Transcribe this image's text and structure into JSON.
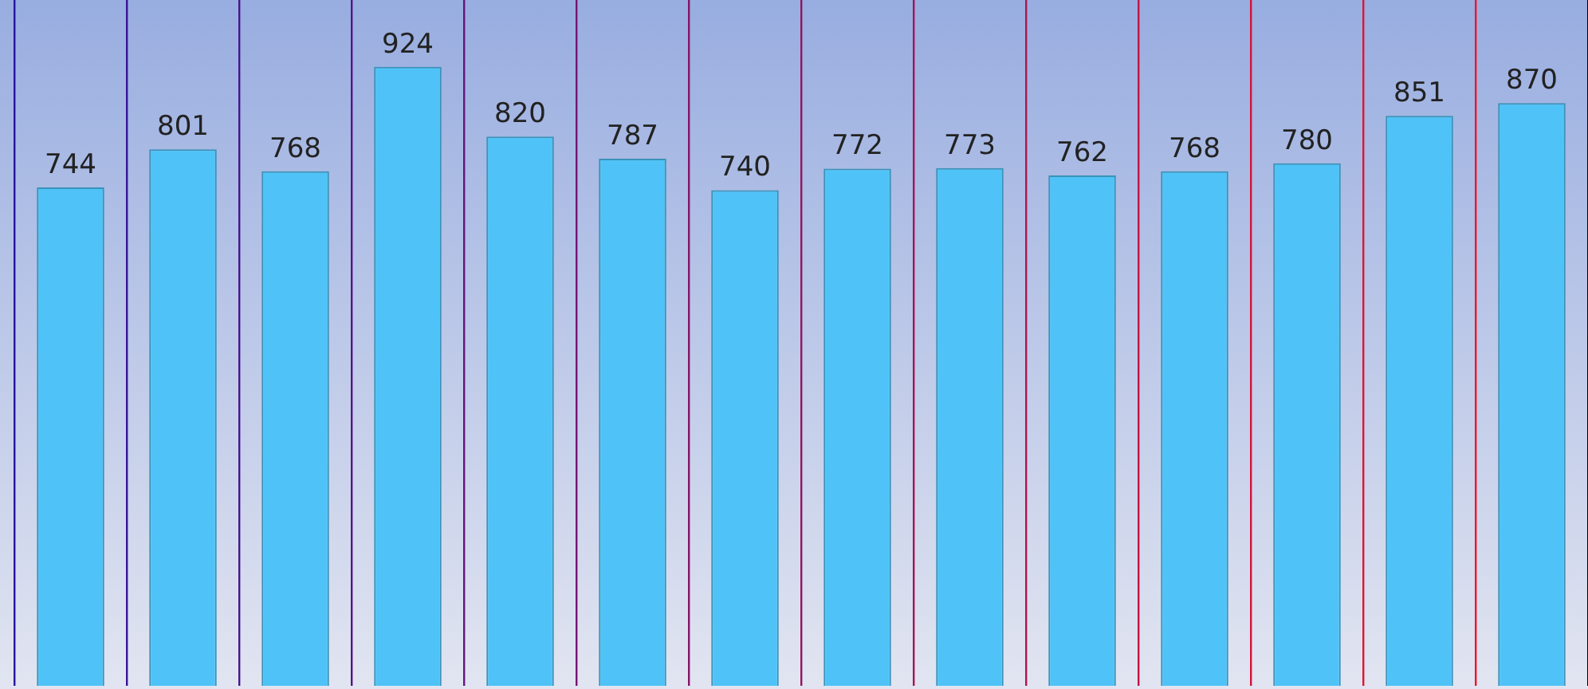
{
  "chart_data": {
    "type": "bar",
    "categories": [
      null,
      null,
      null,
      null,
      null,
      null,
      null,
      null,
      null,
      null,
      null,
      null,
      null,
      null
    ],
    "values": [
      744,
      801,
      768,
      924,
      820,
      787,
      740,
      772,
      773,
      762,
      768,
      780,
      851,
      870
    ],
    "color": "#4fc3f7",
    "data_labels": true
  }
}
